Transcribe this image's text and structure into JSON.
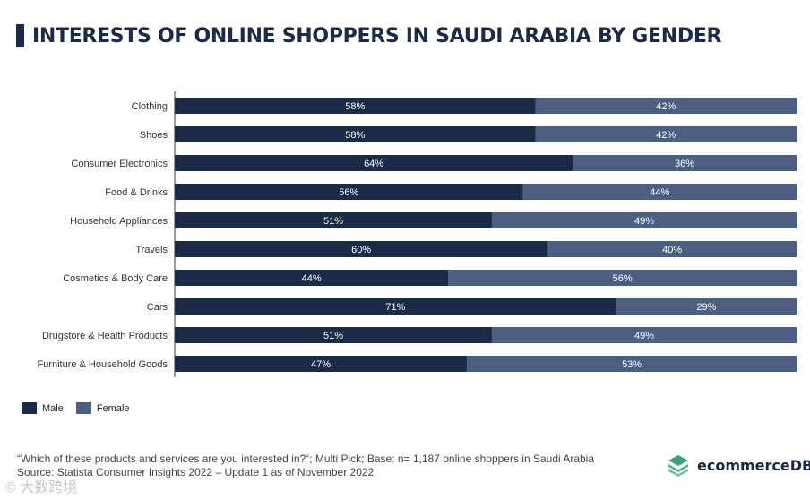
{
  "title": "INTERESTS OF ONLINE SHOPPERS IN SAUDI ARABIA BY GENDER",
  "colors": {
    "male": "#1b2a47",
    "female": "#4c5e82",
    "title": "#1b2a47"
  },
  "legend": {
    "male_label": "Male",
    "female_label": "Female"
  },
  "footnote": {
    "line1": "“Which of these products and services are you interested in?“; Multi Pick; Base: n= 1,187 online shoppers in Saudi Arabia",
    "line2": "Source: Statista Consumer Insights 2022 – Update 1 as of November 2022"
  },
  "brand": {
    "name": "ecommerceDB",
    "icon": "stacked-layers-icon"
  },
  "watermark": "© 大数跨境",
  "chart_data": {
    "type": "bar",
    "orientation": "horizontal",
    "stacked": true,
    "normalized_percent": true,
    "categories": [
      "Clothing",
      "Shoes",
      "Consumer Electronics",
      "Food & Drinks",
      "Household Appliances",
      "Travels",
      "Cosmetics & Body Care",
      "Cars",
      "Drugstore & Health Products",
      "Furniture & Household Goods"
    ],
    "series": [
      {
        "name": "Male",
        "values": [
          58,
          58,
          64,
          56,
          51,
          60,
          44,
          71,
          51,
          47
        ]
      },
      {
        "name": "Female",
        "values": [
          42,
          42,
          36,
          44,
          49,
          40,
          56,
          29,
          49,
          53
        ]
      }
    ],
    "xlim": [
      0,
      100
    ],
    "legend_position": "bottom-left",
    "grid": false
  }
}
